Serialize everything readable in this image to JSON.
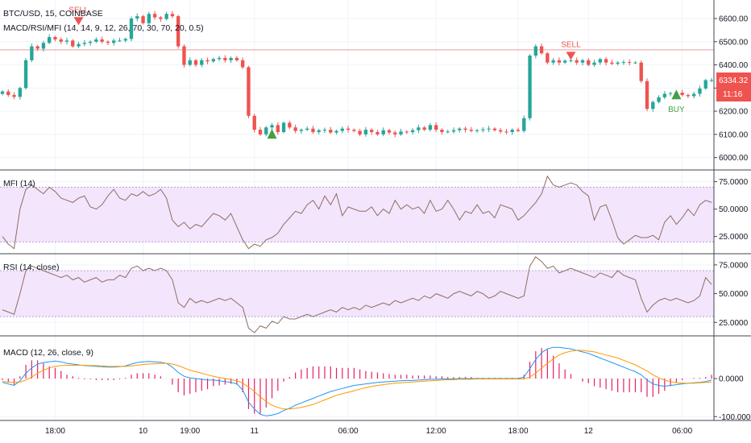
{
  "header": {
    "symbol_line": "BTC/USD, 15, COINBASE",
    "study_line": "MACD/RSI/MFI (14, 14, 9, 12, 26, 70, 30, 70, 20, 0.5)"
  },
  "price_tag": {
    "value": "6334.32",
    "countdown": "11:16"
  },
  "colors": {
    "up": "#26a69a",
    "down": "#ef5350",
    "band_fill": "#f3e5fc",
    "band_line": "#b39ddb",
    "osc_line": "#8d6e63",
    "macd_line": "#2196f3",
    "signal_line": "#ff9800",
    "hist": "#e91e63",
    "sell": "#ef5350",
    "buy": "#43a047",
    "hline": "#e57373"
  },
  "chart_data": [
    {
      "type": "candlestick",
      "title": "BTC/USD, 15, COINBASE",
      "ylim": [
        5950,
        6680
      ],
      "y_ticks": [
        "6600.00",
        "6500.00",
        "6400.00",
        "6300.00",
        "6200.00",
        "6100.00",
        "6000.00"
      ],
      "y_tick_values": [
        6600,
        6500,
        6400,
        6300,
        6200,
        6100,
        6000
      ],
      "x_ticks": [
        "18:00",
        "10",
        "19:00",
        "11",
        "06:00",
        "12:00",
        "18:00",
        "12",
        "06:00"
      ],
      "x_tick_bars": [
        9,
        24,
        32,
        43,
        59,
        74,
        88,
        100,
        116
      ],
      "n_bars": 122,
      "close_series": [
        6285,
        6270,
        6262,
        6300,
        6420,
        6480,
        6470,
        6495,
        6520,
        6510,
        6500,
        6505,
        6480,
        6490,
        6495,
        6500,
        6510,
        6500,
        6495,
        6505,
        6505,
        6512,
        6600,
        6610,
        6580,
        6620,
        6605,
        6598,
        6620,
        6610,
        6480,
        6400,
        6420,
        6400,
        6420,
        6415,
        6425,
        6430,
        6420,
        6430,
        6420,
        6390,
        6180,
        6120,
        6100,
        6130,
        6140,
        6110,
        6150,
        6130,
        6115,
        6120,
        6125,
        6110,
        6118,
        6120,
        6108,
        6115,
        6125,
        6120,
        6115,
        6100,
        6120,
        6110,
        6100,
        6118,
        6108,
        6100,
        6112,
        6110,
        6118,
        6130,
        6120,
        6140,
        6120,
        6110,
        6112,
        6118,
        6125,
        6120,
        6115,
        6118,
        6122,
        6125,
        6118,
        6112,
        6110,
        6120,
        6115,
        6170,
        6440,
        6480,
        6450,
        6410,
        6420,
        6410,
        6418,
        6420,
        6410,
        6420,
        6400,
        6410,
        6425,
        6410,
        6405,
        6410,
        6412,
        6410,
        6410,
        6330,
        6210,
        6240,
        6260,
        6275,
        6278,
        6280,
        6270,
        6265,
        6275,
        6298,
        6334,
        6334
      ],
      "current_price": 6334.32,
      "horizontal_line": 6465,
      "signals": [
        {
          "label": "SELL",
          "type": "sell",
          "bar": 13,
          "price": 6620
        },
        {
          "label": "SELL",
          "type": "sell",
          "bar": 97,
          "price": 6470
        },
        {
          "label": "",
          "type": "buy",
          "bar": 46,
          "price": 6040
        },
        {
          "label": "BUY",
          "type": "buy",
          "bar": 115,
          "price": 6210
        }
      ]
    },
    {
      "type": "line",
      "title": "MFI (14)",
      "ylim": [
        10,
        85
      ],
      "band": [
        20,
        70
      ],
      "y_ticks": [
        "75.0000",
        "50.0000",
        "25.0000"
      ],
      "y_tick_values": [
        75,
        50,
        25
      ],
      "values": [
        25,
        18,
        14,
        50,
        68,
        72,
        68,
        64,
        70,
        66,
        60,
        58,
        56,
        60,
        62,
        52,
        50,
        54,
        62,
        68,
        60,
        58,
        64,
        62,
        66,
        62,
        64,
        68,
        60,
        40,
        34,
        38,
        32,
        36,
        34,
        40,
        46,
        44,
        40,
        46,
        34,
        22,
        14,
        18,
        16,
        22,
        24,
        28,
        36,
        42,
        48,
        46,
        54,
        58,
        50,
        62,
        54,
        64,
        44,
        52,
        50,
        48,
        48,
        52,
        44,
        50,
        46,
        58,
        50,
        54,
        50,
        52,
        46,
        58,
        48,
        50,
        58,
        50,
        40,
        48,
        46,
        54,
        46,
        48,
        42,
        54,
        52,
        50,
        40,
        44,
        50,
        56,
        64,
        80,
        72,
        70,
        72,
        74,
        72,
        66,
        62,
        40,
        52,
        54,
        40,
        24,
        18,
        22,
        26,
        24,
        24,
        26,
        22,
        38,
        44,
        36,
        42,
        50,
        44,
        54,
        58,
        56
      ]
    },
    {
      "type": "line",
      "title": "RSI (14, close)",
      "ylim": [
        14,
        84
      ],
      "band": [
        30,
        70
      ],
      "y_ticks": [
        "75.0000",
        "50.0000",
        "25.0000"
      ],
      "y_tick_values": [
        75,
        50,
        25
      ],
      "values": [
        36,
        34,
        32,
        50,
        70,
        74,
        72,
        70,
        68,
        66,
        64,
        66,
        62,
        64,
        60,
        62,
        64,
        60,
        62,
        62,
        66,
        64,
        72,
        74,
        70,
        72,
        70,
        72,
        70,
        62,
        42,
        38,
        46,
        42,
        44,
        42,
        44,
        46,
        44,
        46,
        42,
        38,
        20,
        16,
        22,
        20,
        26,
        24,
        30,
        28,
        28,
        30,
        32,
        30,
        32,
        34,
        36,
        34,
        38,
        36,
        38,
        36,
        40,
        38,
        40,
        42,
        40,
        44,
        42,
        44,
        46,
        44,
        48,
        46,
        50,
        48,
        46,
        50,
        52,
        50,
        48,
        52,
        50,
        46,
        48,
        52,
        50,
        48,
        46,
        48,
        74,
        82,
        78,
        72,
        74,
        68,
        70,
        72,
        70,
        68,
        66,
        64,
        68,
        66,
        64,
        70,
        66,
        64,
        62,
        46,
        34,
        40,
        44,
        46,
        44,
        46,
        44,
        42,
        44,
        48,
        64,
        58
      ]
    },
    {
      "type": "line",
      "title": "MACD (12, 26, close, 9)",
      "ylim": [
        -110,
        110
      ],
      "y_ticks": [
        "0.0000",
        "-100.0000"
      ],
      "y_tick_values": [
        0,
        -100
      ],
      "series": [
        {
          "name": "MACD",
          "values": [
            -10,
            -14,
            -18,
            -6,
            14,
            28,
            38,
            42,
            44,
            46,
            44,
            40,
            38,
            36,
            34,
            33,
            32,
            31,
            30,
            30,
            31,
            33,
            38,
            42,
            44,
            45,
            44,
            43,
            40,
            30,
            16,
            6,
            2,
            0,
            -2,
            -4,
            -4,
            -6,
            -8,
            -10,
            -14,
            -30,
            -62,
            -80,
            -94,
            -98,
            -96,
            -92,
            -84,
            -78,
            -70,
            -64,
            -58,
            -52,
            -46,
            -40,
            -34,
            -30,
            -26,
            -22,
            -18,
            -16,
            -14,
            -12,
            -10,
            -9,
            -8,
            -7,
            -6,
            -5,
            -5,
            -4,
            -3,
            -2,
            -2,
            -1,
            -1,
            -1,
            0,
            0,
            0,
            0,
            0,
            0,
            0,
            0,
            0,
            0,
            0,
            4,
            26,
            50,
            68,
            78,
            82,
            82,
            80,
            78,
            74,
            70,
            66,
            60,
            54,
            48,
            42,
            36,
            30,
            24,
            18,
            10,
            -4,
            -14,
            -18,
            -20,
            -18,
            -16,
            -14,
            -12,
            -11,
            -10,
            -8,
            -4
          ]
        },
        {
          "name": "Signal",
          "values": [
            -8,
            -9,
            -10,
            -9,
            -4,
            4,
            14,
            22,
            28,
            32,
            34,
            35,
            35,
            35,
            35,
            34,
            34,
            33,
            32,
            32,
            32,
            32,
            33,
            35,
            37,
            38,
            39,
            40,
            40,
            38,
            34,
            28,
            22,
            18,
            14,
            10,
            6,
            3,
            0,
            -3,
            -6,
            -12,
            -22,
            -34,
            -48,
            -60,
            -70,
            -76,
            -80,
            -80,
            -78,
            -76,
            -72,
            -68,
            -62,
            -56,
            -50,
            -44,
            -40,
            -36,
            -32,
            -28,
            -24,
            -21,
            -18,
            -16,
            -14,
            -12,
            -11,
            -10,
            -9,
            -8,
            -7,
            -6,
            -5,
            -4,
            -3,
            -3,
            -2,
            -2,
            -2,
            -1,
            -1,
            -1,
            -1,
            -1,
            -1,
            -1,
            -1,
            -1,
            4,
            14,
            28,
            40,
            52,
            62,
            68,
            72,
            74,
            74,
            72,
            70,
            66,
            62,
            58,
            54,
            48,
            42,
            36,
            28,
            20,
            10,
            2,
            -4,
            -8,
            -11,
            -12,
            -12,
            -12,
            -11,
            -10,
            -9
          ]
        }
      ]
    }
  ]
}
